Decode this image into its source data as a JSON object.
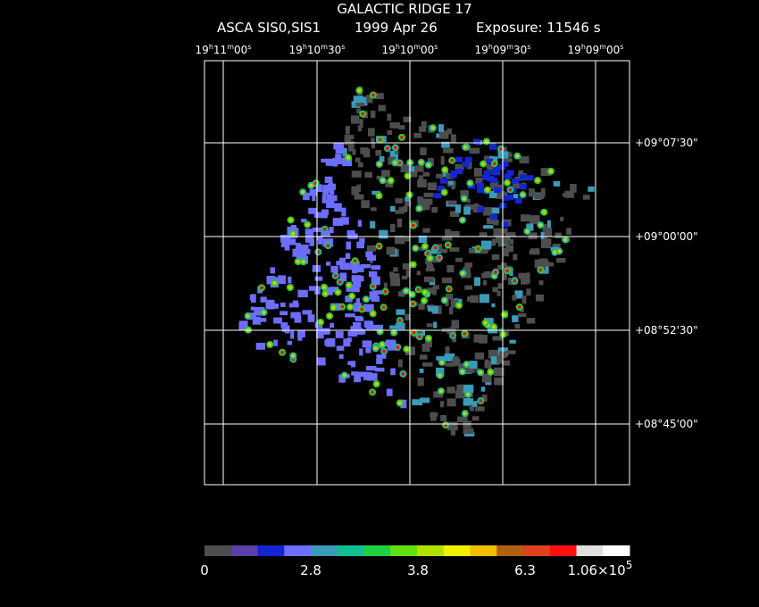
{
  "header": {
    "title": "GALACTIC RIDGE 17",
    "instrument": "ASCA SIS0,SIS1",
    "date": "1999 Apr 26",
    "exposure": "Exposure: 11546 s"
  },
  "ra_labels": [
    [
      "19",
      "h",
      "11",
      "m",
      "00",
      "s"
    ],
    [
      "19",
      "h",
      "10",
      "m",
      "30",
      "s"
    ],
    [
      "19",
      "h",
      "10",
      "m",
      "00",
      "s"
    ],
    [
      "19",
      "h",
      "09",
      "m",
      "30",
      "s"
    ],
    [
      "19",
      "h",
      "09",
      "m",
      "00",
      "s"
    ]
  ],
  "dec_labels": [
    "+09°07'30\"",
    "+09°00'00\"",
    "+08°52'30\"",
    "+08°45'00\""
  ],
  "colorbar": {
    "colors": [
      "#4d4d4d",
      "#5a3fa8",
      "#1424d0",
      "#6d6dff",
      "#3a9ab8",
      "#10c090",
      "#20d040",
      "#60e010",
      "#b0e000",
      "#f0f000",
      "#f0c000",
      "#b06010",
      "#e04020",
      "#ff1010",
      "#e0e0e0",
      "#ffffff"
    ],
    "labels": [
      [
        "0"
      ],
      [
        "2.8"
      ],
      [
        "3.8"
      ],
      [
        "6.3"
      ],
      [
        "1.06×10",
        "5"
      ]
    ]
  }
}
